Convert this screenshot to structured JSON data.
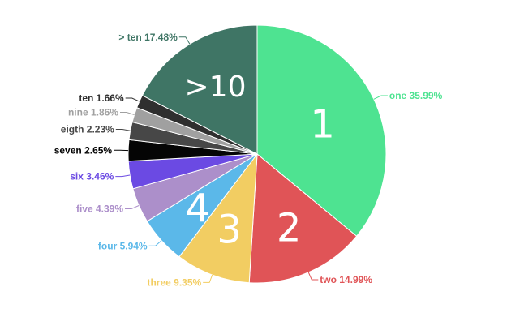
{
  "chart_data": {
    "type": "pie",
    "start_angle_deg": 0,
    "direction": "clockwise",
    "slices": [
      {
        "label": "one 35.99%",
        "value": 35.99,
        "color": "#4ee391",
        "inner": "1"
      },
      {
        "label": "two 14.99%",
        "value": 14.99,
        "color": "#e05457",
        "inner": "2"
      },
      {
        "label": "three 9.35%",
        "value": 9.35,
        "color": "#f2cd62",
        "inner": "3"
      },
      {
        "label": "four 5.94%",
        "value": 5.94,
        "color": "#5bb8e9",
        "inner": "4"
      },
      {
        "label": "five 4.39%",
        "value": 4.39,
        "color": "#ac8fca",
        "inner": ""
      },
      {
        "label": "six 3.46%",
        "value": 3.46,
        "color": "#6b4ae3",
        "inner": ""
      },
      {
        "label": "seven 2.65%",
        "value": 2.65,
        "color": "#050505",
        "inner": ""
      },
      {
        "label": "eigth 2.23%",
        "value": 2.23,
        "color": "#474747",
        "inner": ""
      },
      {
        "label": "nine 1.86%",
        "value": 1.86,
        "color": "#a0a0a0",
        "inner": ""
      },
      {
        "label": "ten 1.66%",
        "value": 1.66,
        "color": "#2f2f2f",
        "inner": ""
      },
      {
        "label": "> ten 17.48%",
        "value": 17.48,
        "color": "#3f7565",
        "inner": ">10"
      }
    ]
  }
}
